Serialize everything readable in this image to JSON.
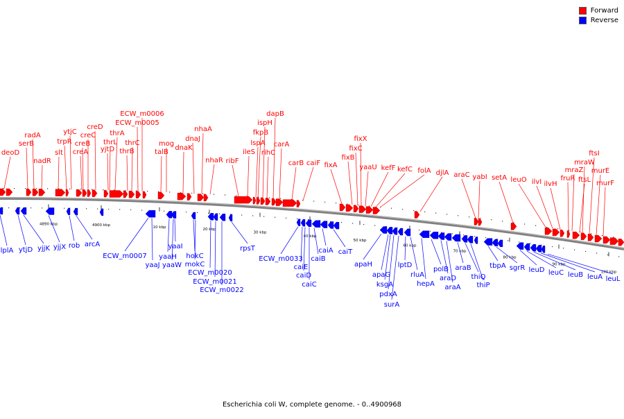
{
  "genome_title": "Escherichia coli W, complete genome. - 0..4900968",
  "legend": [
    {
      "label": "Forward",
      "color": "#ff0000"
    },
    {
      "label": "Reverse",
      "color": "#0000ff"
    }
  ],
  "colors": {
    "forward": "#ff0000",
    "reverse": "#0000ff",
    "backbone": "#808080"
  },
  "scale_labels": [
    "4890 kbp",
    "4900 kbp",
    "10 kbp",
    "20 kbp",
    "30 kbp",
    "40 kbp",
    "50 kbp",
    "60 kbp",
    "70 kbp",
    "80 kbp",
    "90 kbp",
    "100 kbp"
  ],
  "forward_labels": [
    "deoD",
    "serB",
    "radA",
    "nadR",
    "slt",
    "trpR",
    "ytjC",
    "creB",
    "creC",
    "creA",
    "creD",
    "yjtD",
    "thrL",
    "thrA",
    "thrB",
    "thrC",
    "ECW_m0005",
    "ECW_m0006",
    "talB",
    "mog",
    "dnaK",
    "dnaJ",
    "nhaA",
    "nhaR",
    "ribF",
    "ileS",
    "lspA",
    "fkpB",
    "ispH",
    "rihC",
    "dapB",
    "carA",
    "carB",
    "caiF",
    "fixA",
    "fixB",
    "fixC",
    "fixX",
    "yaaU",
    "kefF",
    "kefC",
    "folA",
    "djlA",
    "araC",
    "yabI",
    "setA",
    "leuO",
    "ilvI",
    "ilvH",
    "fruR",
    "mraZ",
    "ftsL",
    "mraW",
    "ftsI",
    "murE",
    "murF"
  ],
  "reverse_labels": [
    "lplA",
    "ytjD",
    "yjjK",
    "yjjX",
    "rob",
    "arcA",
    "ECW_m0007",
    "yaaJ",
    "yaaH",
    "yaaW",
    "yaaI",
    "hokC",
    "mokC",
    "ECW_m0020",
    "ECW_m0021",
    "ECW_m0022",
    "rpsT",
    "ECW_m0033",
    "caiE",
    "caiD",
    "caiC",
    "caiB",
    "caiA",
    "caiT",
    "apaH",
    "apaG",
    "ksgA",
    "pdxA",
    "surA",
    "lptD",
    "rluA",
    "hepA",
    "polB",
    "araD",
    "araA",
    "araB",
    "thiQ",
    "thiP",
    "tbpA",
    "sgrR",
    "leuD",
    "leuC",
    "leuB",
    "leuA",
    "leuL"
  ]
}
